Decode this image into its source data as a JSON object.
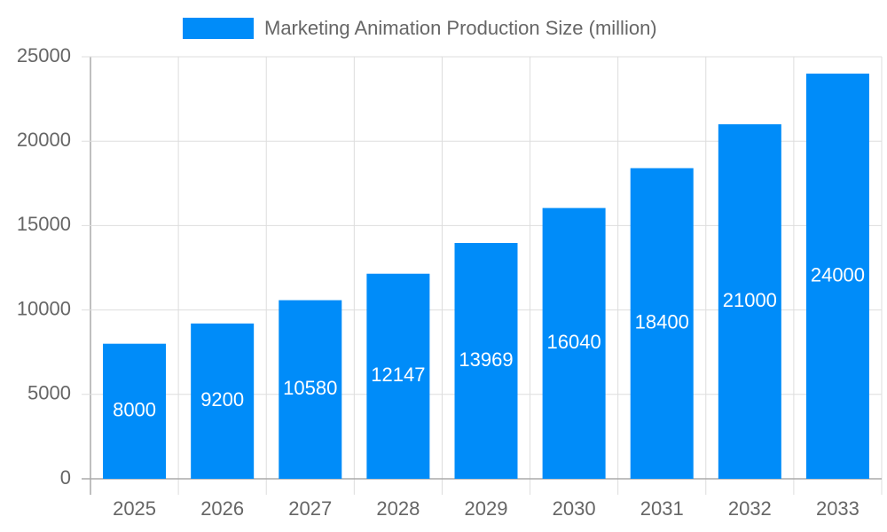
{
  "chart_data": {
    "type": "bar",
    "categories": [
      "2025",
      "2026",
      "2027",
      "2028",
      "2029",
      "2030",
      "2031",
      "2032",
      "2033"
    ],
    "series": [
      {
        "name": "Marketing Animation Production Size (million)",
        "color": "#008cf9",
        "values": [
          8000,
          9200,
          10580,
          12147,
          13969,
          16040,
          18400,
          21000,
          24000
        ]
      }
    ],
    "ylim": [
      0,
      25000
    ],
    "yticks": [
      0,
      5000,
      10000,
      15000,
      20000,
      25000
    ],
    "grid": true,
    "legend": "top"
  }
}
